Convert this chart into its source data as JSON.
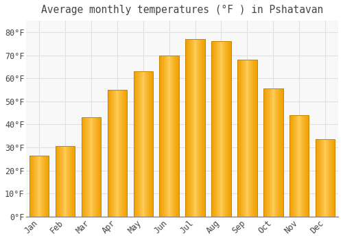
{
  "title": "Average monthly temperatures (°F ) in Pshatavan",
  "months": [
    "Jan",
    "Feb",
    "Mar",
    "Apr",
    "May",
    "Jun",
    "Jul",
    "Aug",
    "Sep",
    "Oct",
    "Nov",
    "Dec"
  ],
  "values": [
    26.5,
    30.5,
    43.0,
    55.0,
    63.0,
    70.0,
    77.0,
    76.0,
    68.0,
    55.5,
    44.0,
    33.5
  ],
  "bar_color_light": "#FFD060",
  "bar_color_dark": "#F0A000",
  "bar_edge_color": "#C88000",
  "background_color": "#FFFFFF",
  "plot_bg_color": "#F8F8F8",
  "grid_color": "#E0E0E0",
  "text_color": "#444444",
  "ylim": [
    0,
    85
  ],
  "yticks": [
    0,
    10,
    20,
    30,
    40,
    50,
    60,
    70,
    80
  ],
  "title_fontsize": 10.5,
  "tick_fontsize": 8.5
}
